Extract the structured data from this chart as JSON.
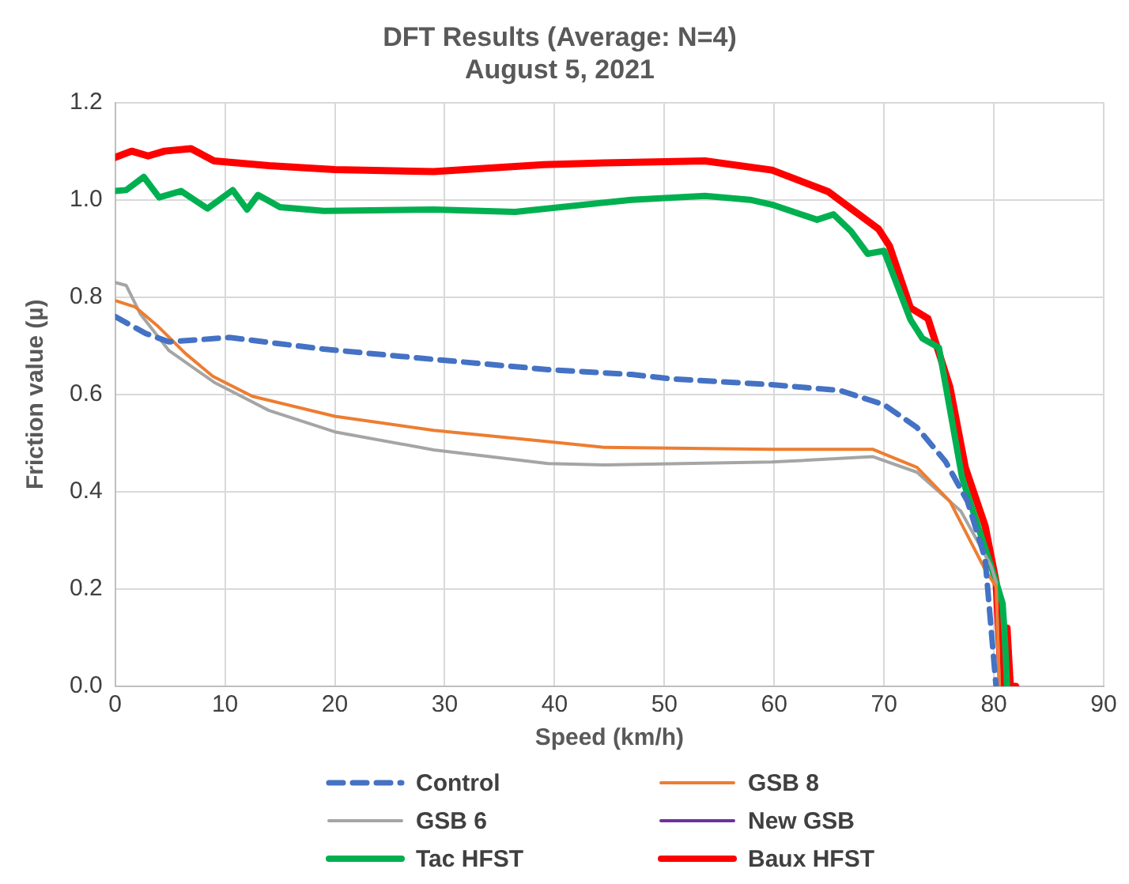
{
  "chart_data": {
    "type": "line",
    "title": [
      "DFT Results (Average: N=4)",
      "August 5, 2021"
    ],
    "xlabel": "Speed (km/h)",
    "ylabel": "Friction value (µ)",
    "xlim": [
      0,
      90
    ],
    "xticks": [
      0,
      10,
      20,
      30,
      40,
      50,
      60,
      70,
      80,
      90
    ],
    "ylim": [
      0,
      1.2
    ],
    "yticks": [
      {
        "value": 0,
        "label": "0.0"
      },
      {
        "value": 0.2,
        "label": "0.2"
      },
      {
        "value": 0.4,
        "label": "0.4"
      },
      {
        "value": 0.6,
        "label": "0.6"
      },
      {
        "value": 0.8,
        "label": "0.8"
      },
      {
        "value": 1,
        "label": "1.0"
      },
      {
        "value": 1.2,
        "label": "1.2"
      }
    ],
    "grid": true,
    "legend": "bottom",
    "marker": "none",
    "series": [
      {
        "name": "Control",
        "color": "#4472c4",
        "line_style": "dashed",
        "x": [
          0,
          2.8,
          4.9,
          10.4,
          19,
          29,
          39.4,
          47,
          50.6,
          59.8,
          66,
          70,
          73,
          75.6,
          77.6,
          79.2,
          80.2
        ],
        "values": [
          0.76,
          0.725,
          0.708,
          0.717,
          0.693,
          0.672,
          0.651,
          0.641,
          0.632,
          0.62,
          0.608,
          0.579,
          0.532,
          0.462,
          0.38,
          0.263,
          0
        ]
      },
      {
        "name": "GSB 8",
        "color": "#ed7d31",
        "line_style": "solid",
        "x": [
          0,
          1.8,
          3.8,
          6.4,
          8.9,
          12.5,
          20,
          29,
          39.4,
          44.5,
          59.8,
          69,
          73,
          76,
          79.2,
          80.2,
          80.5
        ],
        "values": [
          0.793,
          0.78,
          0.742,
          0.684,
          0.637,
          0.596,
          0.555,
          0.526,
          0.503,
          0.491,
          0.487,
          0.487,
          0.45,
          0.38,
          0.24,
          0.205,
          0
        ]
      },
      {
        "name": "GSB 6",
        "color": "#a5a5a5",
        "line_style": "solid",
        "x": [
          0,
          1,
          2.3,
          4.9,
          9,
          14,
          20,
          29,
          39.4,
          44.6,
          59.8,
          69,
          73,
          77,
          79.7,
          80.2,
          80.5
        ],
        "values": [
          0.83,
          0.824,
          0.765,
          0.69,
          0.625,
          0.567,
          0.523,
          0.486,
          0.458,
          0.455,
          0.461,
          0.472,
          0.44,
          0.36,
          0.25,
          0.215,
          0
        ]
      },
      {
        "name": "New GSB",
        "color": "#7030a0",
        "line_style": "solid"
      },
      {
        "name": "Tac HFST",
        "color": "#00b050",
        "line_style": "solid",
        "x": [
          0,
          1,
          2.6,
          4,
          6,
          8.4,
          10.7,
          12,
          13,
          15,
          19,
          29,
          36.4,
          47,
          53.7,
          57.8,
          59.8,
          63.9,
          65.4,
          67,
          68.5,
          70,
          72.4,
          73.5,
          75,
          77.1,
          80.2,
          80.8,
          81,
          81.2
        ],
        "values": [
          1.018,
          1.02,
          1.047,
          1.005,
          1.018,
          0.982,
          1.02,
          0.98,
          1.01,
          0.985,
          0.977,
          0.98,
          0.975,
          1,
          1.008,
          1,
          0.99,
          0.959,
          0.97,
          0.935,
          0.889,
          0.895,
          0.754,
          0.715,
          0.696,
          0.43,
          0.215,
          0.17,
          0.1,
          0
        ]
      },
      {
        "name": "Baux HFST",
        "color": "#ff0000",
        "line_style": "solid",
        "x": [
          0,
          1.5,
          3,
          4.5,
          6.9,
          9,
          14,
          20,
          29,
          39,
          44.6,
          53.7,
          59.8,
          64.9,
          69.5,
          70.5,
          72.4,
          74,
          76,
          77.4,
          79.2,
          80.2,
          80.7,
          81.2,
          81.5,
          82
        ],
        "values": [
          1.087,
          1.1,
          1.09,
          1.1,
          1.105,
          1.08,
          1.07,
          1.062,
          1.058,
          1.072,
          1.076,
          1.08,
          1.061,
          1.017,
          0.94,
          0.905,
          0.778,
          0.756,
          0.615,
          0.45,
          0.33,
          0.215,
          0,
          0.12,
          0,
          0
        ]
      }
    ]
  }
}
